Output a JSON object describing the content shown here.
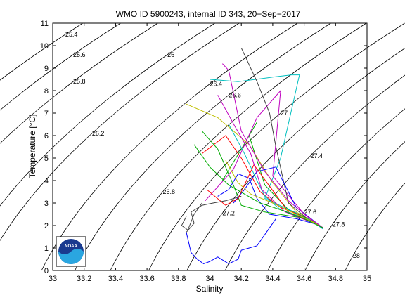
{
  "chart_data": {
    "type": "line",
    "title": "WMO ID 5900243, internal ID 343, 20−Sep−2017",
    "xlabel": "Salinity",
    "ylabel": "Temperature [°C]",
    "xlim": [
      33,
      35
    ],
    "ylim": [
      0,
      11
    ],
    "x_ticks": [
      "33",
      "33.2",
      "33.4",
      "33.6",
      "33.8",
      "34",
      "34.2",
      "34.4",
      "34.6",
      "34.8",
      "35"
    ],
    "y_ticks": [
      "0",
      "1",
      "2",
      "3",
      "4",
      "5",
      "6",
      "7",
      "8",
      "9",
      "10",
      "11"
    ],
    "grid": false,
    "legend": "none",
    "logo": {
      "text": "NOAA",
      "position": "bottom-left"
    },
    "density_contours": [
      {
        "label": "25.4",
        "label_at": [
          33.08,
          10.5
        ]
      },
      {
        "label": "25.6",
        "label_at": [
          33.13,
          9.6
        ]
      },
      {
        "label": "25.8",
        "label_at": [
          33.13,
          8.4
        ]
      },
      {
        "label": "26",
        "label_at": [
          33.73,
          9.6
        ]
      },
      {
        "label": "26.2",
        "label_at": [
          33.25,
          6.1
        ]
      },
      {
        "label": "26.4",
        "label_at": [
          34.0,
          8.3
        ]
      },
      {
        "label": "26.6",
        "label_at": [
          34.12,
          7.8
        ]
      },
      {
        "label": "26.8",
        "label_at": [
          33.7,
          3.5
        ]
      },
      {
        "label": "27",
        "label_at": [
          34.45,
          7.0
        ]
      },
      {
        "label": "27.2",
        "label_at": [
          34.08,
          2.55
        ]
      },
      {
        "label": "27.4",
        "label_at": [
          34.64,
          5.1
        ]
      },
      {
        "label": "27.6",
        "label_at": [
          34.6,
          2.6
        ]
      },
      {
        "label": "27.8",
        "label_at": [
          34.78,
          2.05
        ]
      },
      {
        "label": "28",
        "label_at": [
          34.91,
          0.65
        ]
      }
    ],
    "series": [
      {
        "color": "#0000ff",
        "x": [
          34.05,
          34.12,
          34.18,
          34.25,
          34.3,
          34.38,
          34.55,
          34.68,
          34.72
        ],
        "y": [
          3.3,
          3.6,
          4.3,
          4.1,
          3.2,
          2.5,
          2.3,
          2.05,
          1.9
        ]
      },
      {
        "color": "#00aa00",
        "x": [
          34.08,
          34.2,
          34.3,
          34.25,
          34.35,
          34.5,
          34.65,
          34.72
        ],
        "y": [
          4.0,
          5.4,
          6.6,
          6.0,
          3.8,
          2.7,
          2.2,
          1.9
        ]
      },
      {
        "color": "#ff0000",
        "x": [
          33.95,
          34.1,
          34.2,
          34.32,
          34.45,
          34.6,
          34.7
        ],
        "y": [
          5.2,
          6.0,
          5.0,
          3.5,
          2.8,
          2.4,
          2.0
        ]
      },
      {
        "color": "#00bfbf",
        "x": [
          34.0,
          34.18,
          34.4,
          34.52,
          34.57,
          34.45,
          34.35,
          34.6,
          34.7
        ],
        "y": [
          8.5,
          8.4,
          8.6,
          8.7,
          8.7,
          5.0,
          3.2,
          2.4,
          2.0
        ]
      },
      {
        "color": "#bf00bf",
        "x": [
          33.97,
          34.15,
          34.3,
          34.45,
          34.4,
          34.6,
          34.72
        ],
        "y": [
          3.1,
          4.5,
          6.8,
          8.0,
          4.2,
          2.5,
          1.85
        ]
      },
      {
        "color": "#bfbf00",
        "x": [
          33.85,
          34.05,
          34.25,
          34.4,
          34.55,
          34.7
        ],
        "y": [
          7.4,
          6.8,
          5.6,
          3.9,
          2.6,
          2.0
        ]
      },
      {
        "color": "#404040",
        "x": [
          34.2,
          34.3,
          34.38,
          34.42,
          34.5,
          34.62,
          34.72
        ],
        "y": [
          9.9,
          8.4,
          7.0,
          5.5,
          3.0,
          2.3,
          1.9
        ]
      },
      {
        "color": "#0000ff",
        "x": [
          34.15,
          34.22,
          34.3,
          34.42,
          34.55,
          34.7
        ],
        "y": [
          3.0,
          3.6,
          4.4,
          4.6,
          2.8,
          2.0
        ]
      },
      {
        "color": "#00aa00",
        "x": [
          33.95,
          34.05,
          34.15,
          34.2,
          34.35,
          34.62,
          34.72
        ],
        "y": [
          6.2,
          5.4,
          3.8,
          2.9,
          2.6,
          2.3,
          1.9
        ]
      },
      {
        "color": "#ff0000",
        "x": [
          33.98,
          34.1,
          34.18,
          34.28,
          34.5,
          34.7
        ],
        "y": [
          3.6,
          2.9,
          3.2,
          4.7,
          2.6,
          2.0
        ]
      },
      {
        "color": "#00bfbf",
        "x": [
          34.12,
          34.22,
          34.3,
          34.35,
          34.45,
          34.62,
          34.72
        ],
        "y": [
          6.5,
          5.2,
          4.0,
          3.3,
          2.7,
          2.3,
          1.85
        ]
      },
      {
        "color": "#bf00bf",
        "x": [
          34.05,
          34.16,
          34.26,
          34.33,
          34.48,
          34.68
        ],
        "y": [
          7.8,
          6.4,
          5.2,
          3.6,
          2.6,
          2.05
        ]
      },
      {
        "color": "#bfbf00",
        "x": [
          34.1,
          34.18,
          34.26,
          34.4,
          34.55,
          34.7
        ],
        "y": [
          4.9,
          3.9,
          3.4,
          3.0,
          2.5,
          2.0
        ]
      },
      {
        "color": "#404040",
        "x": [
          33.85,
          33.9,
          33.88,
          33.95,
          34.02,
          34.1,
          34.2
        ],
        "y": [
          1.7,
          2.1,
          2.6,
          2.9,
          3.0,
          3.1,
          3.3
        ]
      },
      {
        "color": "#0000ff",
        "x": [
          33.85,
          33.88,
          33.92,
          33.96,
          34.0,
          34.05,
          34.12,
          34.18,
          34.2,
          34.25,
          34.3,
          34.38,
          34.42
        ],
        "y": [
          1.7,
          0.8,
          0.5,
          0.3,
          0.4,
          0.6,
          0.3,
          0.5,
          0.9,
          1.0,
          1.1,
          1.9,
          2.3
        ]
      },
      {
        "color": "#404040",
        "x": [
          33.85,
          33.82,
          33.86,
          33.9,
          33.95
        ],
        "y": [
          2.4,
          2.0,
          1.8,
          2.5,
          3.0
        ]
      },
      {
        "color": "#bf00bf",
        "x": [
          34.08,
          34.12,
          34.2,
          34.35,
          34.5,
          34.62,
          34.72
        ],
        "y": [
          9.2,
          8.9,
          6.2,
          4.4,
          3.1,
          2.4,
          1.9
        ]
      },
      {
        "color": "#00aa00",
        "x": [
          33.9,
          34.0,
          34.12,
          34.22,
          34.32,
          34.45,
          34.6,
          34.72
        ],
        "y": [
          5.6,
          4.6,
          3.8,
          3.4,
          3.0,
          2.7,
          2.3,
          1.9
        ]
      }
    ]
  }
}
